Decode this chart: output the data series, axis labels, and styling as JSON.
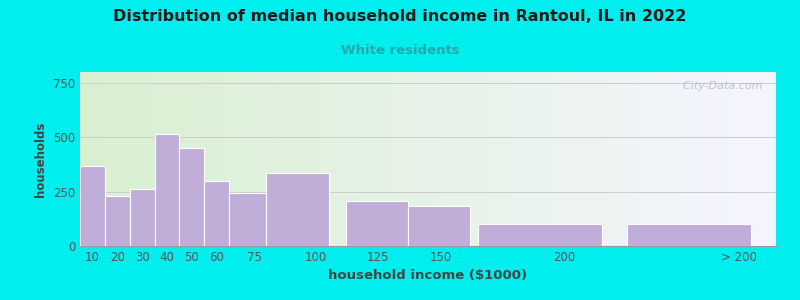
{
  "title": "Distribution of median household income in Rantoul, IL in 2022",
  "subtitle": "White residents",
  "xlabel": "household income ($1000)",
  "ylabel": "households",
  "background_outer": "#00EEEE",
  "background_inner_left": "#d8f0d0",
  "background_inner_right": "#f5f5ff",
  "bar_color": "#c0aed8",
  "bar_edge_color": "#ffffff",
  "title_color": "#1a1a1a",
  "subtitle_color": "#22aaaa",
  "axis_label_color": "#444444",
  "tick_color": "#555555",
  "bar_left_edges": [
    5,
    15,
    25,
    35,
    45,
    55,
    65,
    80,
    112,
    137,
    165,
    225
  ],
  "bar_widths": [
    10,
    10,
    10,
    10,
    10,
    10,
    15,
    25,
    25,
    25,
    50,
    50
  ],
  "bar_centers": [
    10,
    20,
    30,
    40,
    50,
    60,
    75,
    100,
    125,
    150,
    200,
    270
  ],
  "values": [
    370,
    230,
    260,
    515,
    450,
    300,
    245,
    335,
    205,
    185,
    100,
    100
  ],
  "categories": [
    "10",
    "20",
    "30",
    "40",
    "50",
    "60",
    "75",
    "100",
    "125",
    "150",
    "200",
    "> 200"
  ],
  "xlim": [
    5,
    285
  ],
  "ylim": [
    0,
    800
  ],
  "yticks": [
    0,
    250,
    500,
    750
  ],
  "watermark": "  City-Data.com",
  "grid_color": "#cccccc"
}
